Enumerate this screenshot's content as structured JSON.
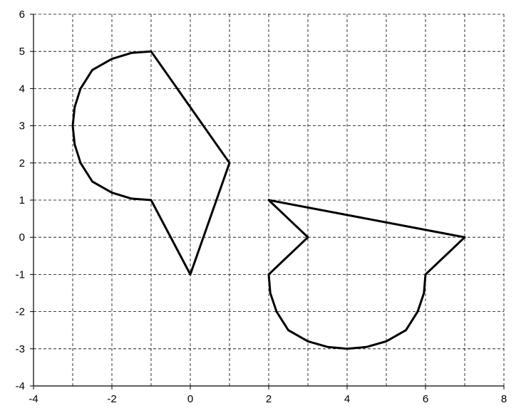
{
  "chart_data": {
    "type": "scatter",
    "title": "",
    "xlabel": "",
    "ylabel": "",
    "xlim": [
      -4,
      8
    ],
    "ylim": [
      -4,
      6
    ],
    "x_ticks": [
      -4,
      -2,
      0,
      2,
      4,
      6,
      8
    ],
    "y_ticks": [
      -4,
      -3,
      -2,
      -1,
      0,
      1,
      2,
      3,
      4,
      5,
      6
    ],
    "x_tick_labels": [
      "-4",
      "-2",
      "0",
      "2",
      "4",
      "6",
      "8"
    ],
    "y_tick_labels": [
      "-4",
      "-3",
      "-2",
      "-1",
      "0",
      "1",
      "2",
      "3",
      "4",
      "5",
      "6"
    ],
    "x_gridlines": [
      -3,
      -2,
      -1,
      0,
      1,
      2,
      3,
      4,
      5,
      6,
      7,
      8
    ],
    "y_gridlines": [
      -3,
      -2,
      -1,
      0,
      1,
      2,
      3,
      4,
      5,
      6
    ],
    "grid": true,
    "grid_style": "dashed",
    "legend": "none",
    "line_color": "#000000",
    "series": [
      {
        "x": [
          1,
          0,
          -1,
          -1.5,
          -2,
          -2.5,
          -2.8,
          -2.95,
          -3,
          -2.95,
          -2.8,
          -2.5,
          -2,
          -1.5,
          -1,
          0,
          1
        ],
        "y": [
          2,
          -1,
          1,
          1.04,
          1.2,
          1.5,
          2,
          2.5,
          3,
          3.5,
          4,
          4.5,
          4.8,
          4.96,
          5,
          3.5,
          2
        ]
      },
      {
        "x": [
          2,
          3,
          2,
          2.04,
          2.2,
          2.5,
          3,
          3.5,
          4,
          4.5,
          5,
          5.5,
          5.8,
          5.96,
          6,
          7,
          2
        ],
        "y": [
          1,
          0,
          -1,
          -1.5,
          -2,
          -2.5,
          -2.8,
          -2.95,
          -3,
          -2.95,
          -2.8,
          -2.5,
          -2,
          -1.5,
          -1,
          0,
          1
        ]
      }
    ]
  }
}
